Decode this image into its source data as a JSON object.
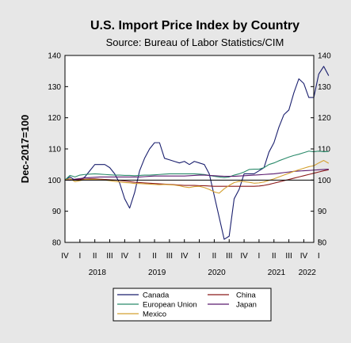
{
  "chart_data": {
    "type": "line",
    "title": "U.S. Import Price Index by Country",
    "subtitle": "Source: Bureau of Labor Statistics/CIM",
    "ylabel": "Dec-2017=100",
    "xlabel": "",
    "ylim": [
      80,
      140
    ],
    "yticks": [
      80,
      90,
      100,
      110,
      120,
      130,
      140
    ],
    "reference_line": 100,
    "grid": false,
    "legend_position": "bottom",
    "x_start": "2017-12",
    "x_end": "2022-02",
    "quarter_ticks": [
      "IV",
      "I",
      "II",
      "III",
      "IV",
      "I",
      "II",
      "III",
      "IV",
      "I",
      "II",
      "III",
      "IV",
      "I",
      "II",
      "III",
      "IV",
      "I"
    ],
    "year_labels": [
      "2018",
      "2019",
      "2020",
      "2021",
      "2022"
    ],
    "series": [
      {
        "name": "Canada",
        "color": "#1a1f6e",
        "values": [
          100,
          101,
          100,
          100,
          101,
          103,
          105,
          105,
          105,
          104,
          102,
          99,
          94,
          91,
          96,
          103,
          107,
          110,
          112,
          112,
          107,
          106.5,
          106,
          105.5,
          106,
          105,
          106,
          105.5,
          105,
          102,
          95,
          88,
          81,
          82,
          94,
          97,
          102,
          102,
          102,
          103,
          104,
          109,
          112,
          117,
          121,
          122.5,
          128,
          132.5,
          131,
          126.5,
          126.5,
          134,
          136.5,
          133.5
        ]
      },
      {
        "name": "China",
        "color": "#8b1a1a",
        "values": [
          100,
          100,
          100.2,
          100.3,
          100.3,
          100.4,
          100.4,
          100.3,
          100.2,
          100.1,
          100,
          99.9,
          99.7,
          99.5,
          99.3,
          99.2,
          99.1,
          99,
          98.9,
          98.8,
          98.7,
          98.6,
          98.5,
          98.4,
          98.3,
          98.3,
          98.3,
          98.2,
          98.2,
          98.1,
          98,
          98,
          98,
          98,
          98,
          98,
          98,
          98,
          98,
          98.1,
          98.3,
          98.6,
          99,
          99.4,
          99.8,
          100.2,
          100.6,
          101,
          101.4,
          101.8,
          102.2,
          102.6,
          103,
          103.3
        ]
      },
      {
        "name": "European Union",
        "color": "#2a8a6a",
        "values": [
          100,
          101.5,
          101,
          101.6,
          101.8,
          101.9,
          102,
          101.9,
          101.8,
          101.7,
          101.6,
          101.6,
          101.5,
          101.5,
          101.4,
          101.5,
          101.6,
          101.6,
          101.7,
          101.8,
          101.9,
          102,
          102,
          102,
          102,
          102,
          102,
          101.9,
          101.8,
          101.5,
          101.2,
          101,
          100.8,
          101,
          101.6,
          102,
          102.6,
          103.4,
          103.5,
          103.5,
          104,
          105,
          105.5,
          106.2,
          106.8,
          107.4,
          107.9,
          108.3,
          108.8,
          109.3,
          109.1,
          109.3,
          109.1,
          109.2
        ]
      },
      {
        "name": "Japan",
        "color": "#5a1a6e",
        "values": [
          100,
          100,
          100.3,
          100.5,
          100.7,
          100.8,
          100.9,
          101,
          101,
          101,
          101,
          101,
          101,
          101,
          101,
          101,
          101.1,
          101.2,
          101.3,
          101.3,
          101.3,
          101.3,
          101.3,
          101.3,
          101.3,
          101.4,
          101.5,
          101.6,
          101.6,
          101.5,
          101.4,
          101.3,
          101.2,
          101.2,
          101.2,
          101.3,
          101.4,
          101.5,
          101.6,
          101.7,
          101.8,
          101.9,
          102,
          102.2,
          102.4,
          102.6,
          102.8,
          102.9,
          103,
          103.1,
          103.2,
          103.3,
          103.4,
          103.5
        ]
      },
      {
        "name": "Mexico",
        "color": "#d4a030",
        "values": [
          100,
          100.5,
          99.5,
          99.8,
          100.2,
          100.2,
          100.2,
          100.1,
          100,
          99.8,
          99.6,
          99.4,
          99.2,
          99.1,
          98.9,
          98.9,
          98.8,
          98.7,
          98.6,
          98.5,
          98.6,
          98.5,
          98.4,
          98.2,
          97.8,
          97.6,
          97.9,
          98,
          97.6,
          97,
          96.2,
          95.8,
          97.2,
          98.3,
          99.2,
          99.6,
          99.5,
          99.3,
          99,
          99.1,
          99.4,
          99.9,
          100.4,
          101,
          101.6,
          102.2,
          102.8,
          103.3,
          103.8,
          104.3,
          104.6,
          105.5,
          106.3,
          105.4
        ]
      }
    ]
  }
}
